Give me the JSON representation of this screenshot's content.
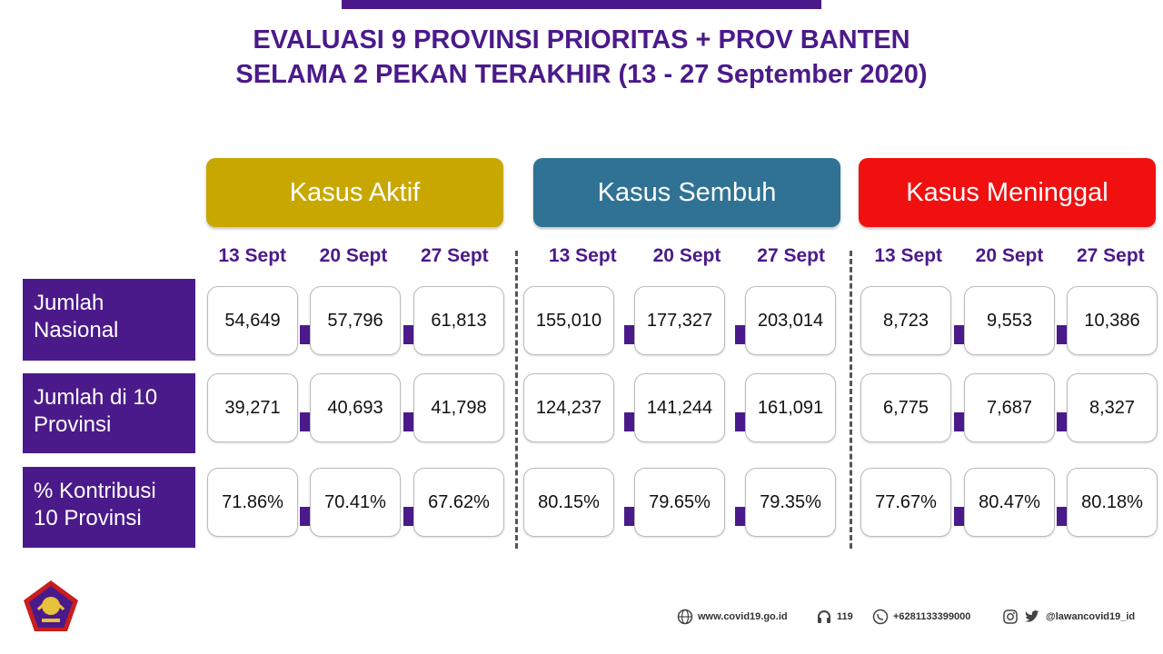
{
  "title": {
    "line1": "EVALUASI 9 PROVINSI PRIORITAS + PROV BANTEN",
    "line2": "SELAMA 2 PEKAN TERAKHIR (13 - 27 September 2020)"
  },
  "groups": [
    {
      "label": "Kasus Aktif",
      "color": "#c8a800",
      "dates": [
        "13 Sept",
        "20 Sept",
        "27 Sept"
      ]
    },
    {
      "label": "Kasus Sembuh",
      "color": "#2f7294",
      "dates": [
        "13 Sept",
        "20 Sept",
        "27 Sept"
      ]
    },
    {
      "label": "Kasus Meninggal",
      "color": "#f01010",
      "dates": [
        "13 Sept",
        "20 Sept",
        "27 Sept"
      ]
    }
  ],
  "rows": [
    {
      "label_line1": "Jumlah",
      "label_line2": "Nasional",
      "values": [
        "54,649",
        "57,796",
        "61,813",
        "155,010",
        "177,327",
        "203,014",
        "8,723",
        "9,553",
        "10,386"
      ]
    },
    {
      "label_line1": "Jumlah di 10",
      "label_line2": "Provinsi",
      "values": [
        "39,271",
        "40,693",
        "41,798",
        "124,237",
        "141,244",
        "161,091",
        "6,775",
        "7,687",
        "8,327"
      ]
    },
    {
      "label_line1": "% Kontribusi",
      "label_line2": "10 Provinsi",
      "values": [
        "71.86%",
        "70.41%",
        "67.62%",
        "80.15%",
        "79.65%",
        "79.35%",
        "77.67%",
        "80.47%",
        "80.18%"
      ]
    }
  ],
  "footer": {
    "website": "www.covid19.go.id",
    "hotline": "119",
    "whatsapp": "+6281133399000",
    "social": "@lawancovid19_id"
  },
  "colors": {
    "purple": "#4b1a8a"
  }
}
